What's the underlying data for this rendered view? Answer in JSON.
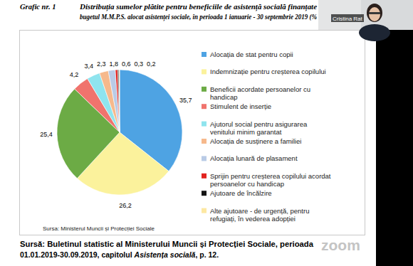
{
  "chart_data": {
    "type": "pie",
    "title": [
      "Distribuția sumelor plătite pentru beneficiile de asistență socială finanțate",
      "bugetul M.M.P.S. alocat asistenței sociale, în perioada 1 ianuarie - 30 septembrie 2019 (%"
    ],
    "annotations": {
      "figure": "Grafic nr. 1",
      "source": "Sursa: Ministerul Muncii și Protecției Sociale"
    },
    "categories": [
      "Alocația de stat pentru copii",
      "Indemnizație pentru creșterea copilului",
      "Beneficii acordate persoanelor cu handicap",
      "Stimulent de inserție",
      "Ajutorul social pentru asigurarea venitului minim garantat",
      "Alocația de susținere a familiei",
      "Alocația lunară de plasament",
      "Sprijin pentru creșterea copilului acordat persoanelor cu handicap",
      "Ajutoare de încălzire",
      "Alte ajutoare - de urgență, pentru refugiați, în vederea adopției"
    ],
    "values": [
      35.7,
      26.2,
      25.4,
      4.2,
      3.4,
      2.3,
      1.8,
      0.6,
      0.3,
      0.2
    ],
    "value_labels": [
      "35,7",
      "26,2",
      "25,4",
      "4,2",
      "3,4",
      "2,3",
      "1,8",
      "0,6",
      "0,3",
      "0,2"
    ],
    "colors": [
      "#4ea3e3",
      "#fbf29c",
      "#6cab45",
      "#f0736d",
      "#8fe4ee",
      "#f6b98c",
      "#b9cbe6",
      "#e2231f",
      "#141414",
      "#fde8a2"
    ],
    "data_labels": true,
    "legend": "right"
  },
  "caption": {
    "line1": "Sursă: Buletinul statistic al Ministerului Muncii și Protecției Sociale, perioada",
    "line2_before": "01.01.2019-30.09.2019, capitolul",
    "line2_italic": "Asistența socială",
    "line2_after": ", p. 12."
  },
  "screen": {
    "participant": "Cristina Rat",
    "logo": "zoom"
  }
}
